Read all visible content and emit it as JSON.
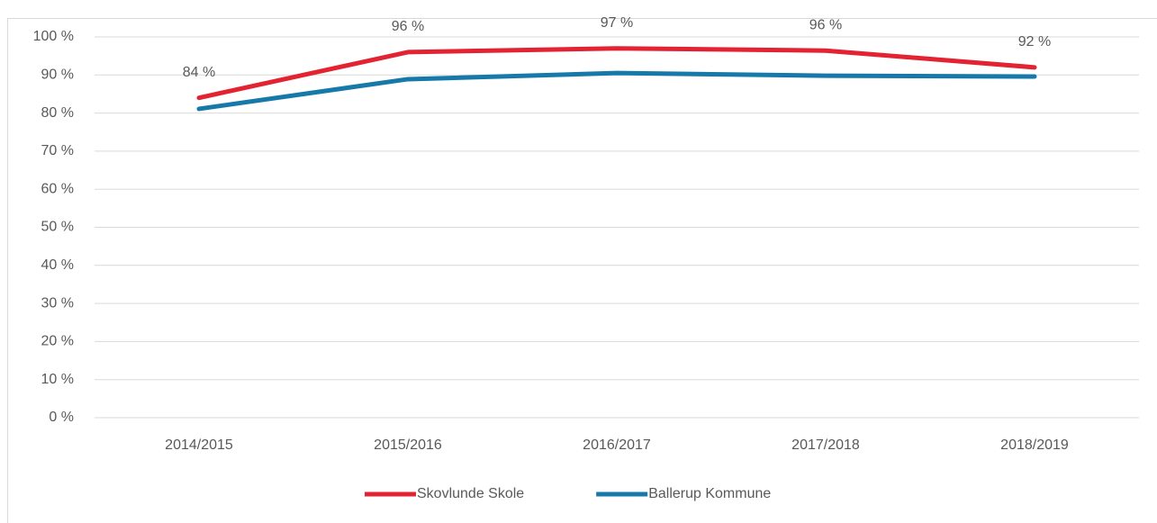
{
  "chart_data": {
    "type": "line",
    "categories": [
      "2014/2015",
      "2015/2016",
      "2016/2017",
      "2017/2018",
      "2018/2019"
    ],
    "series": [
      {
        "name": "Skovlunde Skole",
        "color": "#e32232",
        "values": [
          84,
          96,
          97,
          96.4,
          92
        ],
        "value_labels": [
          "84 %",
          "96 %",
          "97 %",
          "96 %",
          "92 %"
        ]
      },
      {
        "name": "Ballerup Kommune",
        "color": "#1679a9",
        "values": [
          81.1,
          88.9,
          90.5,
          89.8,
          89.6
        ]
      }
    ],
    "ylim": [
      0,
      100
    ],
    "yticks": [
      {
        "value": 0,
        "label": "0 %"
      },
      {
        "value": 10,
        "label": "10 %"
      },
      {
        "value": 20,
        "label": "20 %"
      },
      {
        "value": 30,
        "label": "30 %"
      },
      {
        "value": 40,
        "label": "40 %"
      },
      {
        "value": 50,
        "label": "50 %"
      },
      {
        "value": 60,
        "label": "60 %"
      },
      {
        "value": 70,
        "label": "70 %"
      },
      {
        "value": 80,
        "label": "80 %"
      },
      {
        "value": 90,
        "label": "90 %"
      },
      {
        "value": 100,
        "label": "100 %"
      }
    ],
    "grid": true,
    "legend": "bottom"
  }
}
